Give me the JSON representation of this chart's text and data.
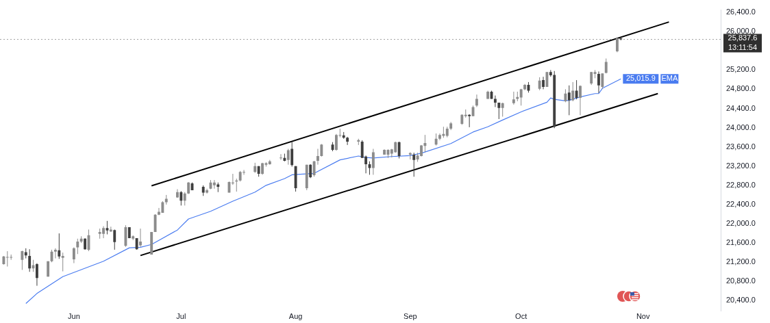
{
  "chart_data": {
    "type": "candlestick",
    "xlim": [
      "--05-13",
      "--11-24"
    ],
    "xticks": [
      {
        "value": "--06-02",
        "label": "Jun"
      },
      {
        "value": "--07-01",
        "label": "Jul"
      },
      {
        "value": "--08-01",
        "label": "Aug"
      },
      {
        "value": "--09-01",
        "label": "Sep"
      },
      {
        "value": "--10-01",
        "label": "Oct"
      },
      {
        "value": "--11-03",
        "label": "Nov"
      }
    ],
    "ylim": [
      20180,
      26450
    ],
    "yticks": [
      {
        "value": 20400,
        "label": "20,400.0"
      },
      {
        "value": 20800,
        "label": "20,800.0"
      },
      {
        "value": 21200,
        "label": "21,200.0"
      },
      {
        "value": 21600,
        "label": "21,600.0"
      },
      {
        "value": 22000,
        "label": "22,000.0"
      },
      {
        "value": 22400,
        "label": "22,400.0"
      },
      {
        "value": 22800,
        "label": "22,800.0"
      },
      {
        "value": 23200,
        "label": "23,200.0"
      },
      {
        "value": 23600,
        "label": "23,600.0"
      },
      {
        "value": 24000,
        "label": "24,000.0"
      },
      {
        "value": 24400,
        "label": "24,400.0"
      },
      {
        "value": 24800,
        "label": "24,800.0"
      },
      {
        "value": 25200,
        "label": "25,200.0"
      },
      {
        "value": 26000,
        "label": "26,000.0"
      },
      {
        "value": 26400,
        "label": "26,400.0"
      }
    ],
    "ref_lines": [
      {
        "axis": "y",
        "value": 25837.6,
        "label": "25,837.6",
        "color": "#9e9e9e",
        "line_style": "dotted"
      }
    ],
    "annotations": [
      "13:11:54"
    ],
    "series": [
      {
        "x": [
          "--05-14",
          "--05-15",
          "--05-16",
          "--05-19",
          "--05-20",
          "--05-21",
          "--05-22",
          "--05-23",
          "--05-26",
          "--05-27",
          "--05-28",
          "--05-29",
          "--05-30",
          "--06-02",
          "--06-03",
          "--06-04",
          "--06-05",
          "--06-06",
          "--06-09",
          "--06-10",
          "--06-11",
          "--06-12",
          "--06-13",
          "--06-16",
          "--06-17",
          "--06-18",
          "--06-19",
          "--06-20",
          "--06-23",
          "--06-24",
          "--06-25",
          "--06-26",
          "--06-27",
          "--06-30",
          "--07-01",
          "--07-02",
          "--07-03",
          "--07-04",
          "--07-07",
          "--07-08",
          "--07-09",
          "--07-10",
          "--07-11",
          "--07-14",
          "--07-15",
          "--07-16",
          "--07-17",
          "--07-18",
          "--07-21",
          "--07-22",
          "--07-23",
          "--07-24",
          "--07-25",
          "--07-28",
          "--07-29",
          "--07-30",
          "--07-31",
          "--08-01",
          "--08-04",
          "--08-05",
          "--08-06",
          "--08-07",
          "--08-08",
          "--08-11",
          "--08-12",
          "--08-13",
          "--08-14",
          "--08-15",
          "--08-18",
          "--08-19",
          "--08-20",
          "--08-21",
          "--08-22",
          "--08-25",
          "--08-26",
          "--08-27",
          "--08-28",
          "--08-29",
          "--09-01",
          "--09-02",
          "--09-03",
          "--09-04",
          "--09-05",
          "--09-08",
          "--09-09",
          "--09-10",
          "--09-11",
          "--09-12",
          "--09-15",
          "--09-16",
          "--09-17",
          "--09-18",
          "--09-19",
          "--09-22",
          "--09-23",
          "--09-24",
          "--09-25",
          "--09-26",
          "--09-29",
          "--09-30",
          "--10-01",
          "--10-02",
          "--10-03",
          "--10-06",
          "--10-07",
          "--10-08",
          "--10-09",
          "--10-10",
          "--10-13",
          "--10-14",
          "--10-15",
          "--10-16",
          "--10-17",
          "--10-20",
          "--10-21",
          "--10-22",
          "--10-23",
          "--10-24",
          "--10-27",
          "--10-28"
        ],
        "ohlc": [
          [
            21160,
            21330,
            21150,
            21320
          ],
          [
            21300,
            21430,
            21110,
            21310
          ],
          [
            21300,
            21360,
            21250,
            21310
          ],
          [
            21250,
            21440,
            21040,
            21430
          ],
          [
            21410,
            21490,
            21280,
            21340
          ],
          [
            21330,
            21470,
            21000,
            21070
          ],
          [
            21070,
            21250,
            21000,
            21140
          ],
          [
            21160,
            21180,
            20710,
            20870
          ],
          [
            20900,
            21220,
            20900,
            21220
          ],
          [
            21220,
            21460,
            21200,
            21420
          ],
          [
            21420,
            21490,
            21280,
            21460
          ],
          [
            21450,
            21800,
            21270,
            21320
          ],
          [
            21290,
            21400,
            21010,
            21330
          ],
          [
            21260,
            21510,
            21180,
            21490
          ],
          [
            21510,
            21690,
            21370,
            21630
          ],
          [
            21630,
            21740,
            21600,
            21690
          ],
          [
            21690,
            21700,
            21460,
            21470
          ],
          [
            21460,
            21880,
            21430,
            21760
          ],
          [
            21790,
            21900,
            21690,
            21830
          ],
          [
            21790,
            21950,
            21700,
            21910
          ],
          [
            21910,
            22060,
            21780,
            21860
          ],
          [
            21840,
            21940,
            21830,
            21880
          ],
          [
            21870,
            21880,
            21460,
            21620
          ],
          [
            21540,
            21970,
            21520,
            21930
          ],
          [
            21930,
            21930,
            21700,
            21700
          ],
          [
            21690,
            21760,
            21660,
            21740
          ],
          [
            21700,
            21700,
            21460,
            21470
          ],
          [
            21550,
            21900,
            21520,
            21630
          ],
          [
            21360,
            21830,
            21360,
            21830
          ],
          [
            21830,
            22200,
            21830,
            22190
          ],
          [
            22190,
            22330,
            22180,
            22250
          ],
          [
            22230,
            22470,
            22230,
            22450
          ],
          [
            22450,
            22600,
            22400,
            22520
          ],
          [
            22550,
            22720,
            22540,
            22660
          ],
          [
            22660,
            22680,
            22380,
            22480
          ],
          [
            22480,
            22660,
            22380,
            22630
          ],
          [
            22630,
            22870,
            22620,
            22860
          ],
          [
            22840,
            22860,
            22700,
            22700
          ],
          [
            22770,
            22800,
            22580,
            22650
          ],
          [
            22650,
            22730,
            22630,
            22700
          ],
          [
            22730,
            22910,
            22720,
            22860
          ],
          [
            22800,
            22910,
            22730,
            22860
          ],
          [
            22820,
            22860,
            22660,
            22770
          ],
          [
            22650,
            22880,
            22650,
            22870
          ],
          [
            22840,
            23040,
            22810,
            22860
          ],
          [
            22880,
            22940,
            22670,
            22900
          ],
          [
            22900,
            23100,
            22880,
            23080
          ],
          [
            23070,
            23120,
            23020,
            23080
          ],
          [
            23080,
            23270,
            23060,
            23200
          ],
          [
            23200,
            23200,
            22980,
            23040
          ],
          [
            23040,
            23270,
            23020,
            23260
          ],
          [
            23230,
            23280,
            23190,
            23260
          ],
          [
            23240,
            23330,
            23230,
            23300
          ],
          [
            23370,
            23450,
            23330,
            23380
          ],
          [
            23370,
            23460,
            23300,
            23310
          ],
          [
            23330,
            23560,
            23230,
            23530
          ],
          [
            23560,
            23710,
            23190,
            23220
          ],
          [
            23200,
            23200,
            22670,
            22740
          ],
          [
            22740,
            23230,
            22700,
            23230
          ],
          [
            23230,
            23240,
            22950,
            22970
          ],
          [
            23010,
            23310,
            22980,
            23300
          ],
          [
            23310,
            23560,
            23230,
            23410
          ],
          [
            23410,
            23660,
            23400,
            23650
          ],
          [
            23650,
            23700,
            23510,
            23540
          ],
          [
            23540,
            23870,
            23520,
            23850
          ],
          [
            23840,
            23980,
            23800,
            23850
          ],
          [
            23840,
            23910,
            23770,
            23790
          ],
          [
            23790,
            23810,
            23640,
            23710
          ],
          [
            23710,
            23770,
            23640,
            23740
          ],
          [
            23710,
            23740,
            23370,
            23370
          ],
          [
            23400,
            23420,
            23050,
            23240
          ],
          [
            23240,
            23300,
            23020,
            23160
          ],
          [
            23160,
            23560,
            23020,
            23490
          ],
          [
            23440,
            23550,
            23440,
            23540
          ],
          [
            23440,
            23550,
            23370,
            23540
          ],
          [
            23460,
            23560,
            23380,
            23550
          ],
          [
            23490,
            23710,
            23480,
            23700
          ],
          [
            23700,
            23710,
            23360,
            23410
          ],
          [
            23440,
            23490,
            23340,
            23470
          ],
          [
            23440,
            23480,
            22980,
            23330
          ],
          [
            23340,
            23480,
            23290,
            23420
          ],
          [
            23410,
            23640,
            23400,
            23630
          ],
          [
            23620,
            23850,
            23490,
            23680
          ],
          [
            23650,
            23880,
            23630,
            23770
          ],
          [
            23770,
            23880,
            23740,
            23850
          ],
          [
            23830,
            24020,
            23790,
            23870
          ],
          [
            23830,
            24020,
            23800,
            23980
          ],
          [
            23980,
            24120,
            23950,
            24090
          ],
          [
            24080,
            24280,
            24060,
            24270
          ],
          [
            24240,
            24380,
            24210,
            24270
          ],
          [
            24270,
            24280,
            24010,
            24240
          ],
          [
            24240,
            24460,
            24240,
            24430
          ],
          [
            24460,
            24690,
            24430,
            24600
          ],
          [
            24600,
            24770,
            24600,
            24750
          ],
          [
            24750,
            24770,
            24600,
            24600
          ],
          [
            24600,
            24670,
            24430,
            24520
          ],
          [
            24520,
            24520,
            24180,
            24410
          ],
          [
            24410,
            24520,
            24230,
            24510
          ],
          [
            24510,
            24750,
            24480,
            24590
          ],
          [
            24600,
            24750,
            24550,
            24640
          ],
          [
            24630,
            24810,
            24460,
            24800
          ],
          [
            24800,
            24910,
            24780,
            24890
          ],
          [
            24890,
            24950,
            24730,
            24770
          ],
          [
            24810,
            25050,
            24780,
            24980
          ],
          [
            24990,
            25060,
            24800,
            24850
          ],
          [
            24850,
            25160,
            24850,
            25160
          ],
          [
            25160,
            25200,
            25060,
            25090
          ],
          [
            25100,
            25180,
            23990,
            24020
          ],
          [
            24550,
            24800,
            24530,
            24710
          ],
          [
            24730,
            24880,
            24260,
            24570
          ],
          [
            24570,
            24950,
            24550,
            24770
          ],
          [
            24770,
            24990,
            24590,
            24620
          ],
          [
            24620,
            24880,
            24260,
            24870
          ],
          [
            24920,
            25160,
            24890,
            25160
          ],
          [
            25120,
            25200,
            25030,
            25160
          ],
          [
            25120,
            25170,
            24720,
            24880
          ],
          [
            24850,
            25130,
            24810,
            25130
          ],
          [
            25140,
            25440,
            25130,
            25370
          ],
          [
            25590,
            25880,
            25570,
            25860
          ],
          [
            25860,
            25870,
            25820,
            25837.6
          ]
        ],
        "colors": [
          "#8c8c8c",
          "#8c8c8c",
          "#8c8c8c",
          "#8c8c8c",
          "#3f3f3f",
          "#3f3f3f",
          "#8c8c8c",
          "#3f3f3f",
          "#8c8c8c",
          "#8c8c8c",
          "#8c8c8c",
          "#3f3f3f",
          "#8c8c8c",
          "#8c8c8c",
          "#8c8c8c",
          "#8c8c8c",
          "#3f3f3f",
          "#8c8c8c",
          "#8c8c8c",
          "#8c8c8c",
          "#3f3f3f",
          "#8c8c8c",
          "#3f3f3f",
          "#8c8c8c",
          "#3f3f3f",
          "#8c8c8c",
          "#3f3f3f",
          "#8c8c8c",
          "#8c8c8c",
          "#8c8c8c",
          "#8c8c8c",
          "#8c8c8c",
          "#8c8c8c",
          "#8c8c8c",
          "#3f3f3f",
          "#8c8c8c",
          "#8c8c8c",
          "#3f3f3f",
          "#3f3f3f",
          "#8c8c8c",
          "#8c8c8c",
          "#8c8c8c",
          "#3f3f3f",
          "#8c8c8c",
          "#8c8c8c",
          "#8c8c8c",
          "#8c8c8c",
          "#8c8c8c",
          "#8c8c8c",
          "#3f3f3f",
          "#8c8c8c",
          "#8c8c8c",
          "#8c8c8c",
          "#8c8c8c",
          "#3f3f3f",
          "#8c8c8c",
          "#3f3f3f",
          "#3f3f3f",
          "#8c8c8c",
          "#3f3f3f",
          "#8c8c8c",
          "#8c8c8c",
          "#8c8c8c",
          "#3f3f3f",
          "#8c8c8c",
          "#8c8c8c",
          "#3f3f3f",
          "#3f3f3f",
          "#8c8c8c",
          "#3f3f3f",
          "#3f3f3f",
          "#3f3f3f",
          "#8c8c8c",
          "#8c8c8c",
          "#8c8c8c",
          "#8c8c8c",
          "#8c8c8c",
          "#3f3f3f",
          "#8c8c8c",
          "#3f3f3f",
          "#8c8c8c",
          "#8c8c8c",
          "#8c8c8c",
          "#8c8c8c",
          "#8c8c8c",
          "#8c8c8c",
          "#8c8c8c",
          "#8c8c8c",
          "#8c8c8c",
          "#8c8c8c",
          "#3f3f3f",
          "#8c8c8c",
          "#8c8c8c",
          "#8c8c8c",
          "#3f3f3f",
          "#3f3f3f",
          "#3f3f3f",
          "#8c8c8c",
          "#8c8c8c",
          "#8c8c8c",
          "#8c8c8c",
          "#8c8c8c",
          "#3f3f3f",
          "#8c8c8c",
          "#3f3f3f",
          "#8c8c8c",
          "#3f3f3f",
          "#3f3f3f",
          "#8c8c8c",
          "#3f3f3f",
          "#8c8c8c",
          "#3f3f3f",
          "#8c8c8c",
          "#8c8c8c",
          "#8c8c8c",
          "#3f3f3f",
          "#8c8c8c",
          "#8c8c8c",
          "#8c8c8c",
          "#3f3f3f"
        ]
      },
      {
        "type": "line",
        "name": "EMA",
        "color": "#4a7cf0",
        "x": [
          "--05-20",
          "--05-23",
          "--05-30",
          "--06-10",
          "--06-17",
          "--06-20",
          "--06-23",
          "--06-30",
          "--07-03",
          "--07-09",
          "--07-15",
          "--07-21",
          "--07-24",
          "--07-29",
          "--07-31",
          "--08-06",
          "--08-13",
          "--08-18",
          "--08-20",
          "--08-22",
          "--08-27",
          "--09-01",
          "--09-04",
          "--09-12",
          "--09-18",
          "--09-22",
          "--09-26",
          "--10-01",
          "--10-08",
          "--10-09",
          "--10-10",
          "--10-13",
          "--10-14",
          "--10-17",
          "--10-21",
          "--10-22",
          "--10-23",
          "--10-28"
        ],
        "values": [
          20340,
          20550,
          20900,
          21220,
          21500,
          21510,
          21570,
          21870,
          22100,
          22260,
          22470,
          22660,
          22800,
          22940,
          23020,
          23050,
          23330,
          23410,
          23380,
          23370,
          23400,
          23420,
          23470,
          23670,
          23910,
          24020,
          24160,
          24330,
          24530,
          24620,
          24590,
          24560,
          24570,
          24640,
          24710,
          24710,
          24820,
          25015.9
        ],
        "value_labels": [
          null,
          null,
          null,
          null,
          null,
          null,
          null,
          null,
          null,
          null,
          null,
          null,
          null,
          null,
          null,
          null,
          null,
          null,
          null,
          null,
          null,
          null,
          null,
          null,
          null,
          null,
          null,
          null,
          null,
          null,
          null,
          null,
          null,
          null,
          null,
          null,
          null,
          "25,015.9"
        ]
      },
      {
        "type": "line",
        "color": "#000000",
        "x": [
          "--06-23",
          "--11-10"
        ],
        "values": [
          22790,
          26200
        ]
      },
      {
        "type": "line",
        "color": "#000000",
        "x": [
          "--06-20",
          "--11-07"
        ],
        "values": [
          21340,
          24710
        ]
      }
    ]
  }
}
